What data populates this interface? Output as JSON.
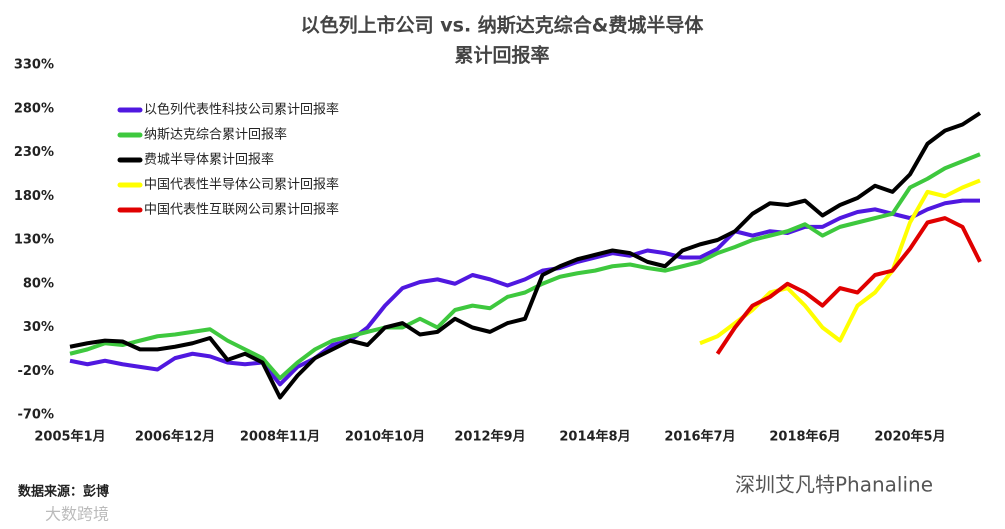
{
  "chart_data": {
    "type": "line",
    "title": "以色列上市公司 vs. 纳斯达克综合&费城半导体",
    "subtitle": "累计回报率",
    "source": "数据来源：彭博",
    "watermarks": [
      "深圳艾凡特Phanaline",
      "大数跨境"
    ],
    "categories": [
      "2005年1月",
      null,
      null,
      null,
      null,
      null,
      "2006年12月",
      null,
      null,
      null,
      null,
      null,
      "2008年11月",
      null,
      null,
      null,
      null,
      null,
      "2010年10月",
      null,
      null,
      null,
      null,
      null,
      "2012年9月",
      null,
      null,
      null,
      null,
      null,
      "2014年8月",
      null,
      null,
      null,
      null,
      null,
      "2016年7月",
      null,
      null,
      null,
      null,
      null,
      "2018年6月",
      null,
      null,
      null,
      null,
      null,
      "2020年5月",
      null,
      null,
      null,
      null
    ],
    "ylim": [
      -70,
      330
    ],
    "yticks": [
      {
        "value": -70,
        "label": "-70%"
      },
      {
        "value": -20,
        "label": "-20%"
      },
      {
        "value": 30,
        "label": "30%"
      },
      {
        "value": 80,
        "label": "80%"
      },
      {
        "value": 130,
        "label": "130%"
      },
      {
        "value": 180,
        "label": "180%"
      },
      {
        "value": 230,
        "label": "230%"
      },
      {
        "value": 280,
        "label": "280%"
      },
      {
        "value": 330,
        "label": "330%"
      }
    ],
    "grid": false,
    "legend": "upper left",
    "series": [
      {
        "name": "以色列代表性科技公司累计回报率",
        "color": "#5018e0",
        "values": [
          -8,
          -12,
          -8,
          -12,
          -15,
          -18,
          -5,
          0,
          -3,
          -10,
          -12,
          -10,
          -35,
          -15,
          -5,
          10,
          15,
          30,
          55,
          75,
          82,
          85,
          80,
          90,
          85,
          78,
          85,
          95,
          98,
          105,
          110,
          115,
          112,
          118,
          115,
          110,
          110,
          120,
          140,
          135,
          140,
          138,
          145,
          145,
          155,
          162,
          165,
          160,
          155,
          165,
          172,
          175,
          175
        ]
      },
      {
        "name": "纳斯达克综合累计回报率",
        "color": "#3ec83e",
        "values": [
          0,
          5,
          12,
          10,
          15,
          20,
          22,
          25,
          28,
          15,
          5,
          -5,
          -28,
          -10,
          5,
          15,
          20,
          25,
          30,
          30,
          40,
          30,
          50,
          55,
          52,
          65,
          70,
          80,
          88,
          92,
          95,
          100,
          102,
          98,
          95,
          100,
          105,
          115,
          122,
          130,
          135,
          140,
          148,
          135,
          145,
          150,
          155,
          160,
          190,
          200,
          212,
          220,
          228
        ]
      },
      {
        "name": "费城半导体累计回报率",
        "color": "#000000",
        "values": [
          8,
          12,
          15,
          14,
          5,
          5,
          8,
          12,
          18,
          -7,
          0,
          -10,
          -50,
          -25,
          -5,
          5,
          15,
          10,
          30,
          35,
          22,
          25,
          40,
          30,
          25,
          35,
          40,
          90,
          100,
          108,
          113,
          118,
          115,
          105,
          100,
          118,
          125,
          130,
          140,
          160,
          172,
          170,
          175,
          158,
          170,
          178,
          192,
          185,
          205,
          240,
          255,
          262,
          275
        ]
      },
      {
        "name": "中国代表性半导体公司累计回报率",
        "color": "#ffff00",
        "values": [
          null,
          null,
          null,
          null,
          null,
          null,
          null,
          null,
          null,
          null,
          null,
          null,
          null,
          null,
          null,
          null,
          null,
          null,
          null,
          null,
          null,
          null,
          null,
          null,
          null,
          null,
          null,
          null,
          null,
          null,
          null,
          null,
          null,
          null,
          null,
          null,
          12,
          20,
          35,
          50,
          70,
          75,
          55,
          30,
          15,
          55,
          70,
          95,
          150,
          185,
          180,
          190,
          198
        ]
      },
      {
        "name": "中国代表性互联网公司累计回报率",
        "color": "#e00000",
        "values": [
          null,
          null,
          null,
          null,
          null,
          null,
          null,
          null,
          null,
          null,
          null,
          null,
          null,
          null,
          null,
          null,
          null,
          null,
          null,
          null,
          null,
          null,
          null,
          null,
          null,
          null,
          null,
          null,
          null,
          null,
          null,
          null,
          null,
          null,
          null,
          null,
          null,
          0,
          30,
          55,
          65,
          80,
          70,
          55,
          75,
          70,
          90,
          95,
          120,
          150,
          155,
          145,
          105
        ]
      }
    ]
  }
}
